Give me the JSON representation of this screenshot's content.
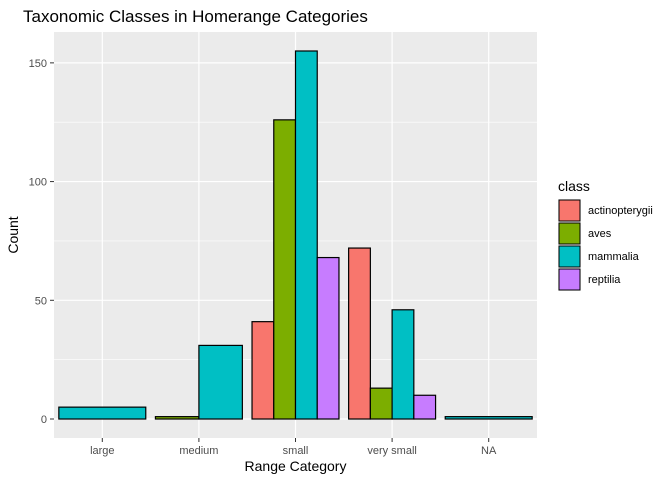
{
  "chart_data": {
    "type": "bar",
    "title": "Taxonomic Classes in Homerange Categories",
    "xlabel": "Range Category",
    "ylabel": "Count",
    "categories": [
      "large",
      "medium",
      "small",
      "very small",
      "NA"
    ],
    "ylim": [
      -8,
      163
    ],
    "yticks": [
      0,
      50,
      100,
      150
    ],
    "grid": true,
    "position": "dodge",
    "legend": {
      "title": "class",
      "placement": "right"
    },
    "colors": {
      "panel_bg": "#ebebeb",
      "grid": "#ffffff",
      "bar_border": "#000000"
    },
    "series": [
      {
        "name": "actinopterygii",
        "color": "#F8766D",
        "values": [
          null,
          null,
          41,
          72,
          null
        ]
      },
      {
        "name": "aves",
        "color": "#7CAE00",
        "values": [
          null,
          1,
          126,
          13,
          null
        ]
      },
      {
        "name": "mammalia",
        "color": "#00BFC4",
        "values": [
          5,
          31,
          155,
          46,
          1
        ]
      },
      {
        "name": "reptilia",
        "color": "#C77CFF",
        "values": [
          null,
          null,
          68,
          10,
          null
        ]
      }
    ]
  }
}
